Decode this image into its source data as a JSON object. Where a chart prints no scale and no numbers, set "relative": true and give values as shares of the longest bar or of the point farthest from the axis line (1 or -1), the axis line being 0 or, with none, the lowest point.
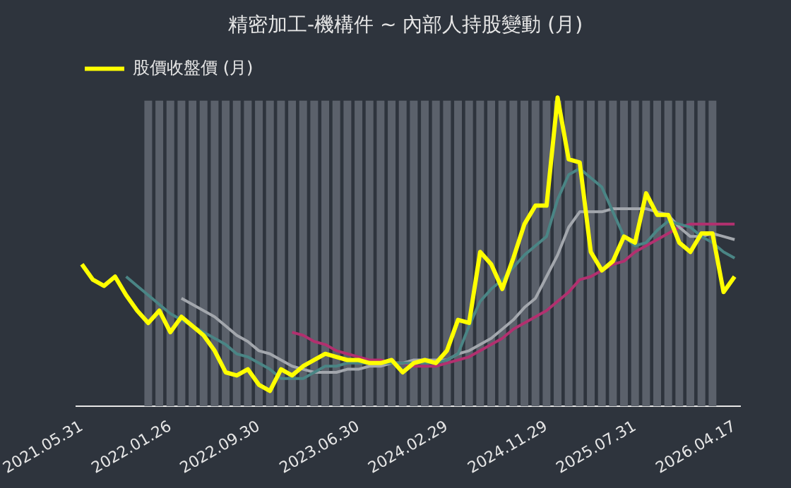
{
  "chart_data": {
    "type": "line",
    "title": "精密加工-機構件 ~ 內部人持股變動 (月)",
    "relative": true,
    "legend": "top left",
    "grid": false,
    "marker": "none",
    "categories": [
      "2021.05.31",
      null,
      null,
      null,
      null,
      null,
      null,
      null,
      "2022.01.26",
      null,
      null,
      null,
      null,
      null,
      null,
      null,
      "2022.09.30",
      null,
      null,
      null,
      null,
      null,
      null,
      null,
      null,
      "2023.06.30",
      null,
      null,
      null,
      null,
      null,
      null,
      null,
      "2024.02.29",
      null,
      null,
      null,
      null,
      null,
      null,
      null,
      null,
      "2024.11.29",
      null,
      null,
      null,
      null,
      null,
      null,
      null,
      "2025.07.31",
      null,
      null,
      null,
      null,
      null,
      null,
      null,
      null,
      "2026.04.17"
    ],
    "series": [
      {
        "type": "bar",
        "color": "#5b616b",
        "values": [
          null,
          null,
          null,
          null,
          null,
          null,
          0.99,
          0.99,
          0.99,
          0.99,
          0.99,
          0.99,
          0.99,
          0.99,
          0.99,
          0.99,
          0.99,
          0.99,
          0.99,
          0.99,
          0.99,
          0.99,
          0.99,
          0.99,
          0.99,
          0.99,
          0.99,
          0.99,
          0.99,
          0.99,
          0.99,
          0.99,
          0.99,
          0.99,
          0.99,
          0.99,
          0.99,
          0.99,
          0.99,
          0.99,
          0.99,
          0.99,
          0.99,
          0.99,
          0.99,
          0.99,
          0.99,
          0.99,
          0.99,
          0.99,
          0.99,
          0.99,
          0.99,
          0.99,
          0.99,
          0.99,
          0.99,
          0.99,
          null,
          null
        ]
      },
      {
        "color": "#4a8585",
        "values": [
          null,
          null,
          null,
          null,
          0.42,
          0.39,
          0.36,
          0.33,
          0.3,
          0.28,
          0.26,
          0.24,
          0.22,
          0.2,
          0.17,
          0.16,
          0.14,
          0.12,
          0.09,
          0.09,
          0.09,
          0.11,
          0.13,
          0.13,
          0.14,
          0.14,
          0.14,
          0.14,
          0.14,
          0.14,
          0.14,
          0.14,
          0.14,
          0.15,
          0.17,
          0.26,
          0.34,
          0.38,
          0.41,
          0.45,
          0.49,
          0.52,
          0.55,
          0.67,
          0.75,
          0.77,
          0.74,
          0.71,
          0.63,
          0.55,
          0.52,
          0.53,
          0.57,
          0.6,
          0.59,
          0.58,
          0.55,
          0.53,
          0.5,
          0.48
        ]
      },
      {
        "color": "#a3a7ad",
        "values": [
          null,
          null,
          null,
          null,
          null,
          null,
          null,
          null,
          null,
          0.35,
          0.33,
          0.31,
          0.29,
          0.26,
          0.23,
          0.21,
          0.18,
          0.17,
          0.15,
          0.13,
          0.12,
          0.11,
          0.11,
          0.11,
          0.12,
          0.12,
          0.13,
          0.13,
          0.14,
          0.14,
          0.15,
          0.15,
          0.15,
          0.15,
          0.17,
          0.18,
          0.2,
          0.22,
          0.25,
          0.28,
          0.32,
          0.35,
          0.42,
          0.49,
          0.58,
          0.63,
          0.63,
          0.63,
          0.64,
          0.64,
          0.64,
          0.64,
          0.63,
          0.62,
          0.58,
          0.55,
          0.55,
          0.56,
          0.55,
          0.54
        ]
      },
      {
        "color": "#b2306f",
        "values": [
          null,
          null,
          null,
          null,
          null,
          null,
          null,
          null,
          null,
          null,
          null,
          null,
          null,
          null,
          null,
          null,
          null,
          null,
          null,
          0.24,
          0.23,
          0.21,
          0.2,
          0.18,
          0.17,
          0.16,
          0.15,
          0.15,
          0.14,
          0.14,
          0.13,
          0.13,
          0.13,
          0.14,
          0.15,
          0.16,
          0.18,
          0.2,
          0.22,
          0.25,
          0.27,
          0.29,
          0.31,
          0.34,
          0.37,
          0.41,
          0.42,
          0.44,
          0.46,
          0.47,
          0.5,
          0.52,
          0.54,
          0.56,
          0.58,
          0.59,
          0.59,
          0.59,
          0.59,
          0.59
        ]
      },
      {
        "name": "股價收盤價 (月)",
        "color": "#ffff00",
        "values": [
          0.46,
          0.41,
          0.39,
          0.42,
          0.36,
          0.31,
          0.27,
          0.31,
          0.24,
          0.29,
          0.26,
          0.23,
          0.18,
          0.11,
          0.1,
          0.12,
          0.07,
          0.05,
          0.12,
          0.1,
          0.13,
          0.15,
          0.17,
          0.16,
          0.15,
          0.15,
          0.14,
          0.14,
          0.15,
          0.11,
          0.14,
          0.15,
          0.14,
          0.18,
          0.28,
          0.27,
          0.5,
          0.46,
          0.38,
          0.48,
          0.59,
          0.65,
          0.65,
          1,
          0.8,
          0.79,
          0.5,
          0.44,
          0.47,
          0.55,
          0.53,
          0.69,
          0.62,
          0.62,
          0.53,
          0.5,
          0.56,
          0.56,
          0.37,
          0.42
        ]
      }
    ]
  }
}
